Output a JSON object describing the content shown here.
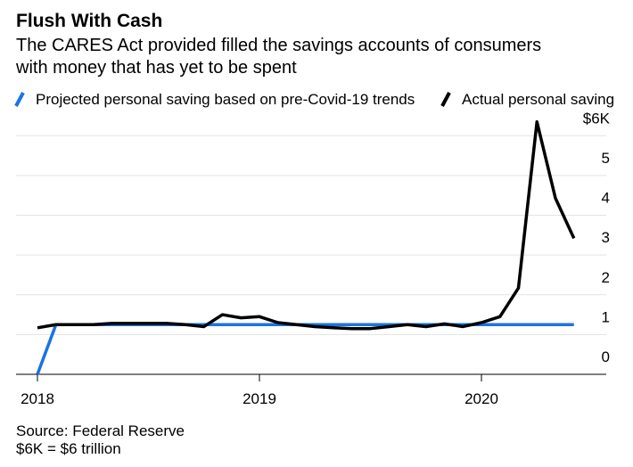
{
  "chart_data": {
    "type": "line",
    "title": "Flush With Cash",
    "subtitle": [
      "The CARES Act provided filled the savings accounts of consumers",
      "with money that has yet to be spent"
    ],
    "categories": [
      "2018",
      null,
      null,
      null,
      null,
      null,
      null,
      null,
      null,
      null,
      null,
      null,
      "2019",
      null,
      null,
      null,
      null,
      null,
      null,
      null,
      null,
      null,
      null,
      null,
      "2020",
      null,
      null,
      null,
      null,
      null
    ],
    "series": [
      {
        "name": "Projected personal saving based on pre-Covid-19 trends",
        "color": "#1a74e2",
        "values": [
          0,
          1.25,
          1.25,
          1.25,
          1.25,
          1.25,
          1.25,
          1.25,
          1.25,
          1.25,
          1.25,
          1.25,
          1.25,
          1.25,
          1.25,
          1.25,
          1.25,
          1.25,
          1.25,
          1.25,
          1.25,
          1.25,
          1.25,
          1.25,
          1.25,
          1.25,
          1.25,
          1.25,
          1.25,
          1.25
        ]
      },
      {
        "name": "Actual personal saving",
        "color": "#000000",
        "values": [
          1.17,
          1.25,
          1.25,
          1.25,
          1.28,
          1.28,
          1.28,
          1.28,
          1.25,
          1.2,
          1.5,
          1.42,
          1.45,
          1.3,
          1.25,
          1.2,
          1.17,
          1.15,
          1.15,
          1.2,
          1.25,
          1.2,
          1.27,
          1.2,
          1.3,
          1.45,
          2.17,
          6.35,
          4.43,
          3.42
        ]
      }
    ],
    "ylim": [
      0,
      6.5
    ],
    "yticks": [
      0,
      1,
      2,
      3,
      4,
      5,
      {
        "value": 6,
        "label": "$6K"
      }
    ],
    "grid": true,
    "source": "Source: Federal Reserve",
    "note": "$6K = $6 trillion"
  }
}
